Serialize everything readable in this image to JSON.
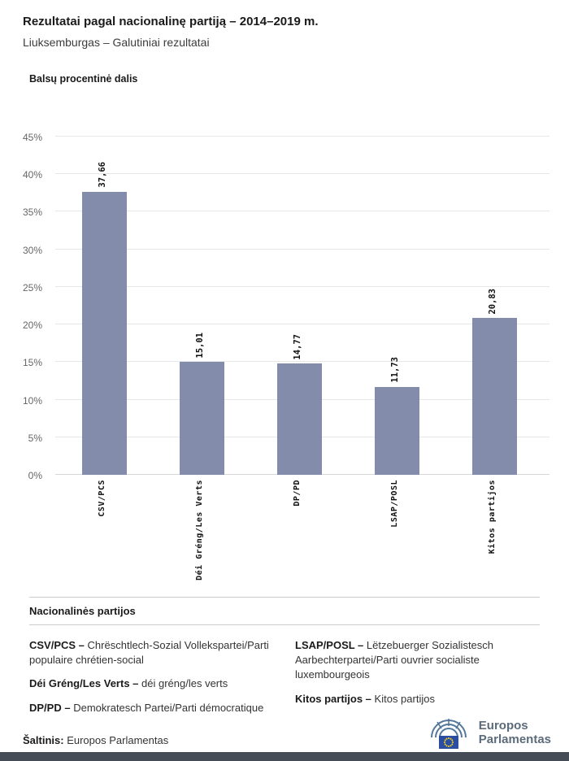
{
  "header": {
    "title": "Rezultatai pagal nacionalinę partiją – 2014–2019 m.",
    "subtitle": "Liuksemburgas – Galutiniai rezultatai"
  },
  "chart": {
    "heading": "Balsų procentinė dalis"
  },
  "chart_data": {
    "type": "bar",
    "title": "Balsų procentinė dalis",
    "categories": [
      "CSV/PCS",
      "Déi Gréng/Les Verts",
      "DP/PD",
      "LSAP/POSL",
      "Kitos partijos"
    ],
    "values": [
      37.66,
      15.01,
      14.77,
      11.73,
      20.83
    ],
    "value_labels": [
      "37,66",
      "15,01",
      "14,77",
      "11,73",
      "20,83"
    ],
    "xlabel": "",
    "ylabel": "",
    "ylim": [
      0,
      45
    ],
    "ytick_step": 5,
    "ytick_labels": [
      "0%",
      "5%",
      "10%",
      "15%",
      "20%",
      "25%",
      "30%",
      "35%",
      "40%",
      "45%"
    ],
    "bar_color": "#848CAC",
    "grid": true,
    "legend_position": "none"
  },
  "parties_section": {
    "heading": "Nacionalinės partijos",
    "columns": [
      {
        "items": [
          {
            "term": "CSV/PCS –",
            "desc": "Chrëschtlech-Sozial Vollekspartei/Parti populaire chrétien-social"
          },
          {
            "term": "Déi Gréng/Les Verts –",
            "desc": "déi gréng/les verts"
          },
          {
            "term": "DP/PD –",
            "desc": "Demokratesch Partei/Parti démocratique"
          }
        ]
      },
      {
        "items": [
          {
            "term": "LSAP/POSL –",
            "desc": "Lëtzebuerger Sozialistesch Aarbechterpartei/Parti ouvrier socialiste luxembourgeois"
          },
          {
            "term": "Kitos partijos –",
            "desc": "Kitos partijos"
          }
        ]
      }
    ]
  },
  "footer": {
    "source_label": "Šaltinis:",
    "source_value": "Europos Parlamentas",
    "logo_line1": "Europos",
    "logo_line2": "Parlamentas"
  }
}
